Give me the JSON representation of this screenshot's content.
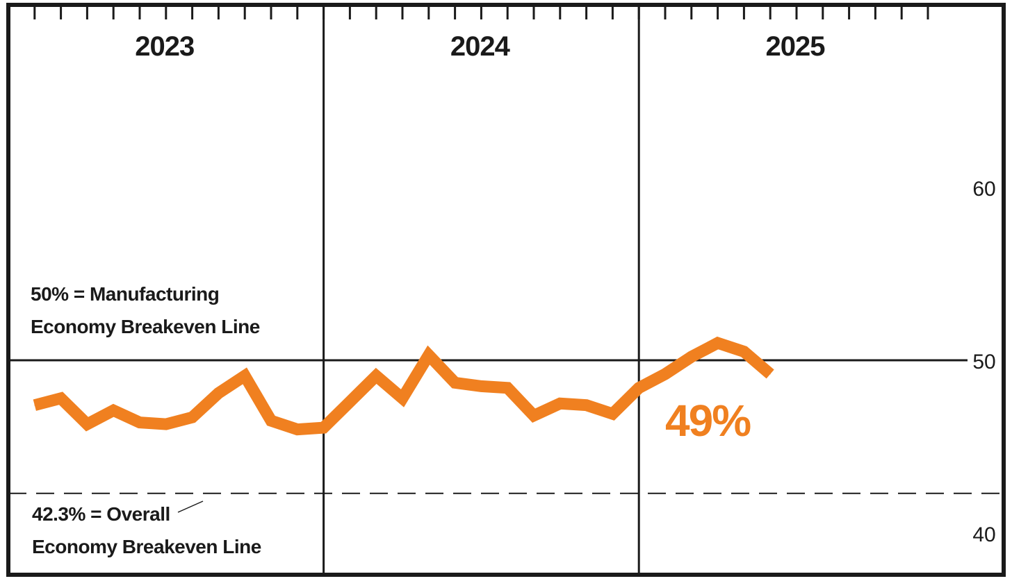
{
  "chart_data": {
    "type": "line",
    "years": [
      "2023",
      "2024",
      "2025"
    ],
    "ylim": [
      40,
      69
    ],
    "yticks": [
      "60",
      "50",
      "40"
    ],
    "series": [
      {
        "values": [
          47.4,
          47.8,
          46.3,
          47.1,
          46.4,
          46.3,
          46.7,
          48.1,
          49.1,
          46.5,
          46.0,
          46.1,
          47.6,
          49.1,
          47.8,
          50.3,
          48.7,
          48.5,
          48.4,
          46.8,
          47.5,
          47.4,
          46.9,
          48.4,
          49.2,
          50.2,
          51.0,
          50.5,
          49.2
        ],
        "color": "#f08020"
      }
    ],
    "reference_lines": [
      {
        "value": 50,
        "style": "solid",
        "label_lines": [
          "50% = Manufacturing",
          "Economy Breakeven Line"
        ]
      },
      {
        "value": 42.3,
        "style": "dashed",
        "label_lines": [
          "42.3% = Overall",
          "Economy Breakeven Line"
        ]
      }
    ],
    "last_value_label": "49%",
    "grid": false
  }
}
